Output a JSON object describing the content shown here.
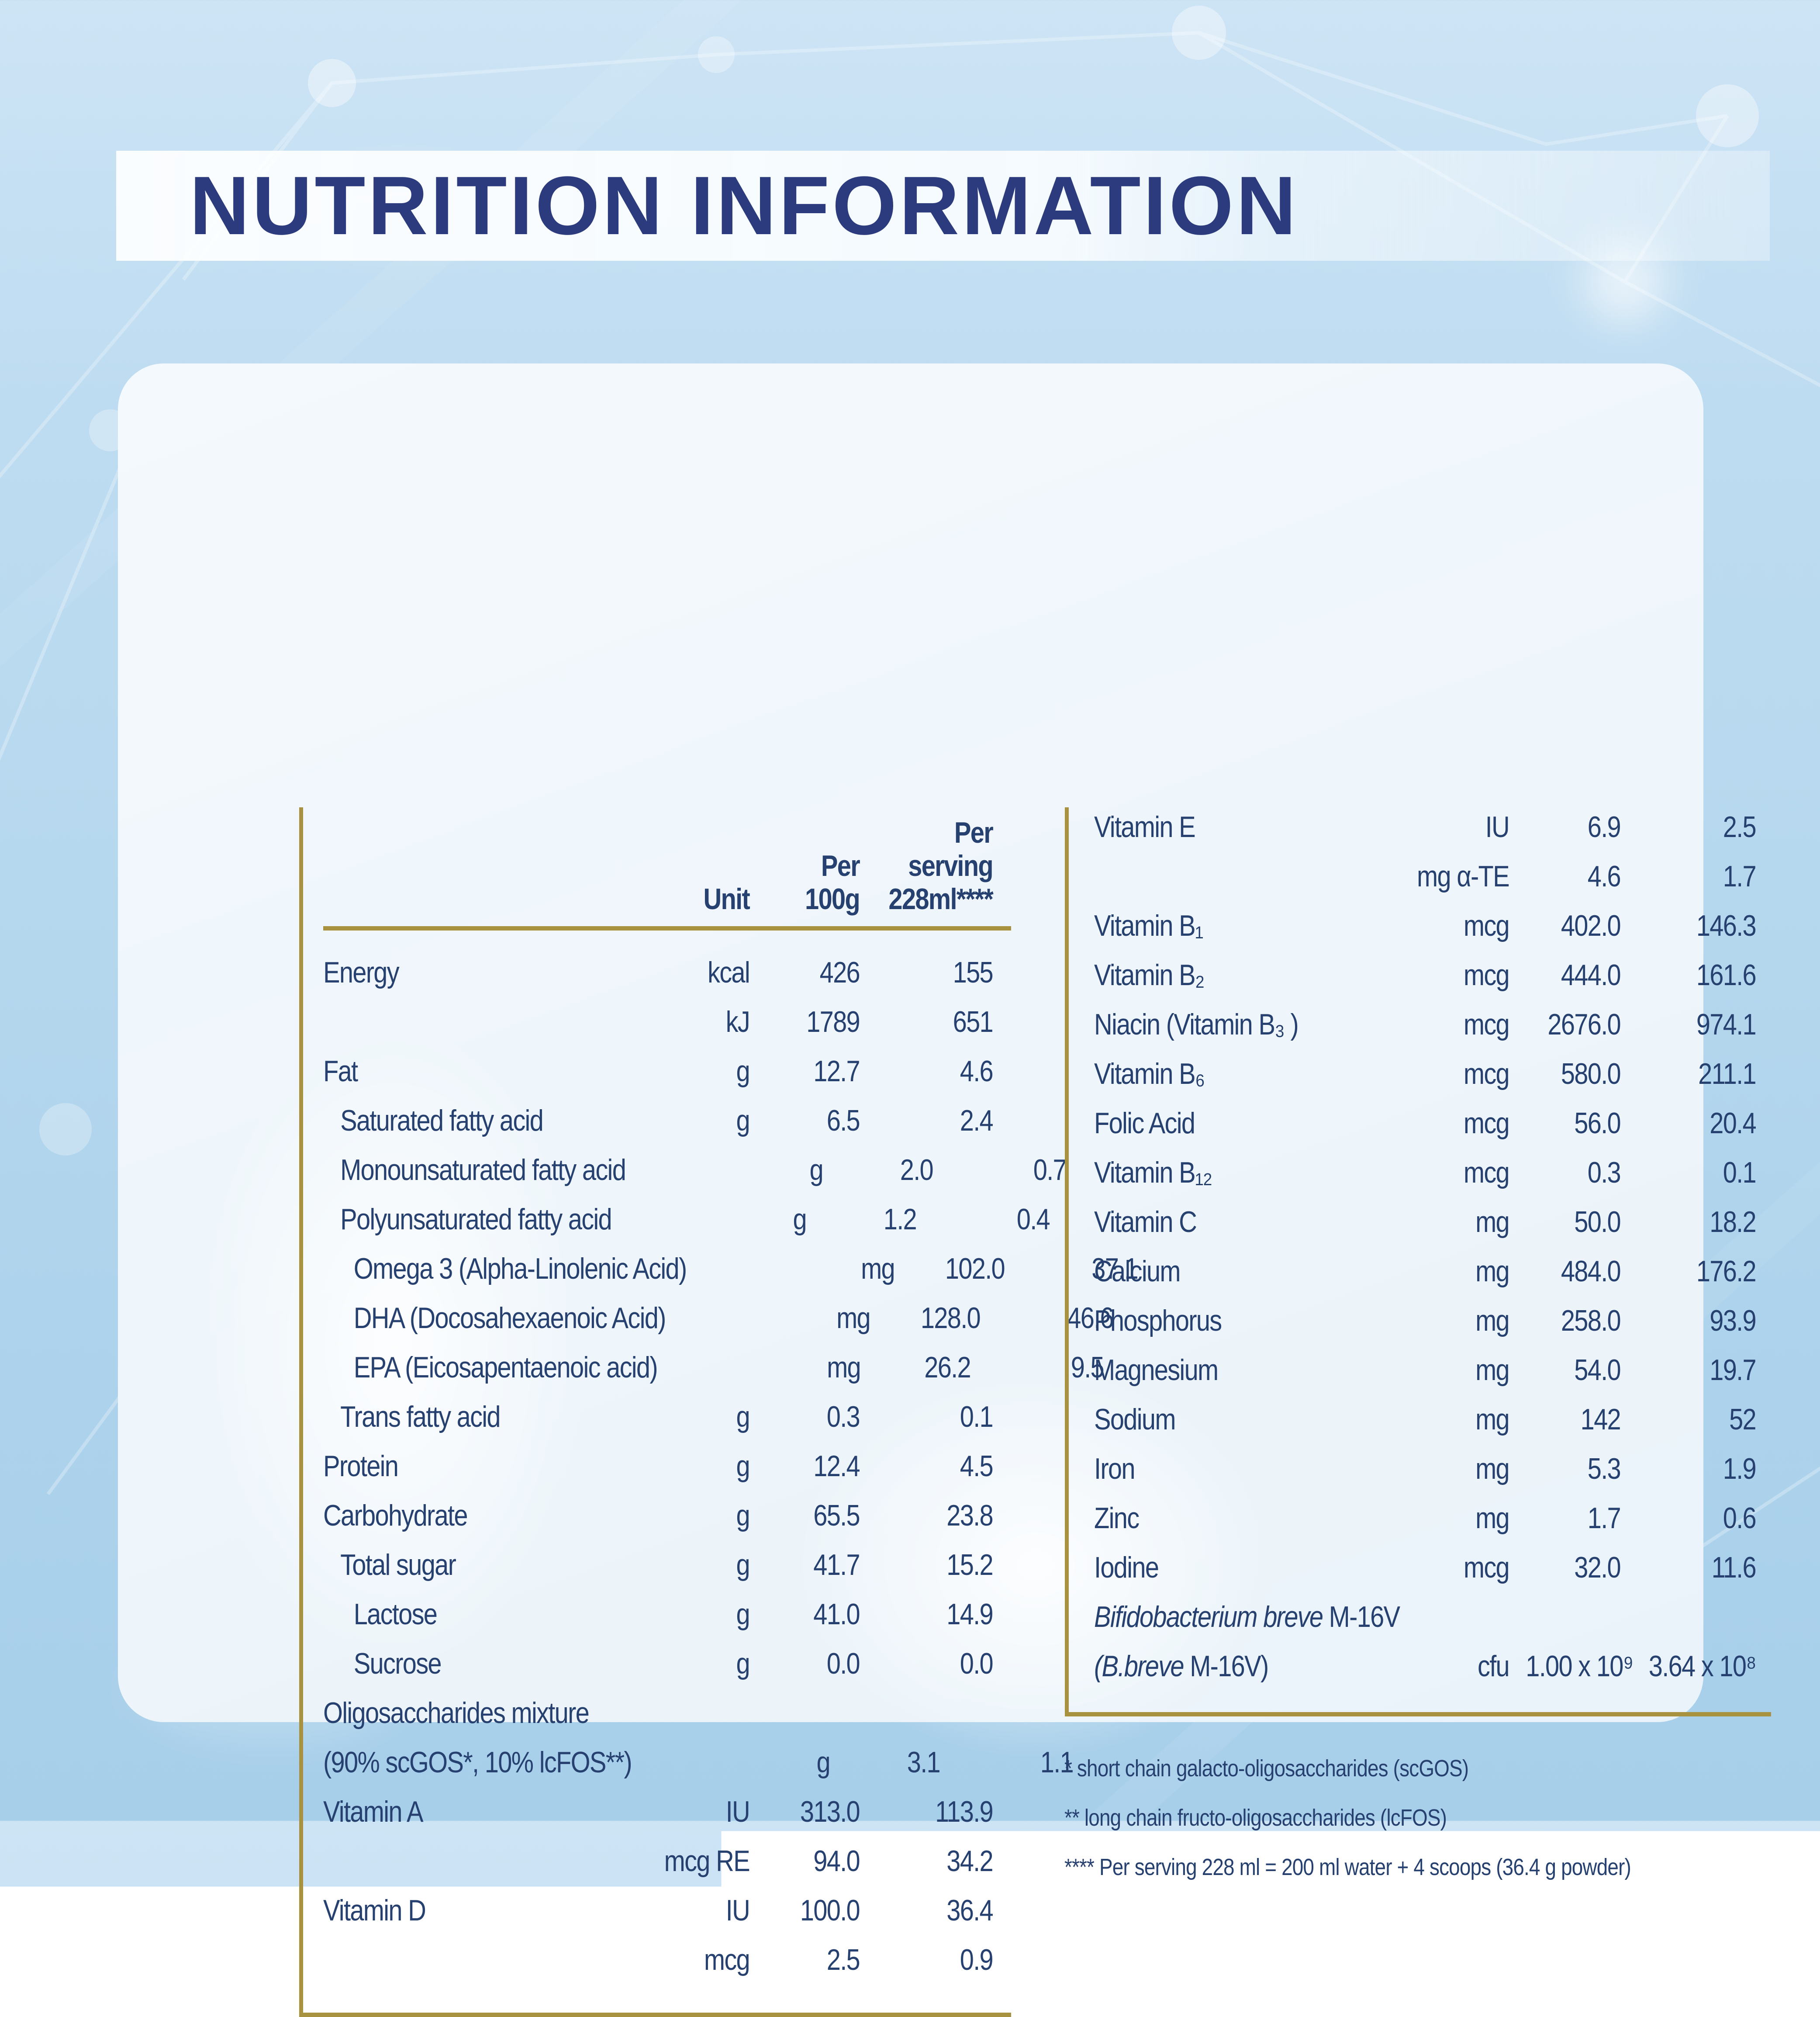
{
  "page": {
    "title": "NUTRITION INFORMATION"
  },
  "colors": {
    "navy_title": "#2c3b7d",
    "navy_text": "#26406f",
    "gold_rule": "#a89240",
    "background_blue": "#b6d8ee",
    "card_white": "#eff6fb"
  },
  "table_left": {
    "headers": {
      "unit": "Unit",
      "per_100g": "Per\n100g",
      "per_serving": "Per\nserving\n228ml****"
    },
    "rows": [
      {
        "label": "Energy",
        "indent": 0,
        "unit": "kcal",
        "per_100g": "426",
        "per_serving": "155"
      },
      {
        "label": "",
        "indent": 0,
        "unit": "kJ",
        "per_100g": "1789",
        "per_serving": "651"
      },
      {
        "label": "Fat",
        "indent": 0,
        "unit": "g",
        "per_100g": "12.7",
        "per_serving": "4.6"
      },
      {
        "label": "Saturated fatty acid",
        "indent": 1,
        "unit": "g",
        "per_100g": "6.5",
        "per_serving": "2.4"
      },
      {
        "label": "Monounsaturated fatty acid",
        "indent": 1,
        "unit": "g",
        "per_100g": "2.0",
        "per_serving": "0.7"
      },
      {
        "label": "Polyunsaturated fatty acid",
        "indent": 1,
        "unit": "g",
        "per_100g": "1.2",
        "per_serving": "0.4"
      },
      {
        "label": "Omega 3 (Alpha-Linolenic Acid)",
        "indent": 2,
        "unit": "mg",
        "per_100g": "102.0",
        "per_serving": "37.1"
      },
      {
        "label": "DHA (Docosahexaenoic Acid)",
        "indent": 2,
        "unit": "mg",
        "per_100g": "128.0",
        "per_serving": "46.6"
      },
      {
        "label": "EPA (Eicosapentaenoic acid)",
        "indent": 2,
        "unit": "mg",
        "per_100g": "26.2",
        "per_serving": "9.5"
      },
      {
        "label": "Trans fatty acid",
        "indent": 1,
        "unit": "g",
        "per_100g": "0.3",
        "per_serving": "0.1"
      },
      {
        "label": "Protein",
        "indent": 0,
        "unit": "g",
        "per_100g": "12.4",
        "per_serving": "4.5"
      },
      {
        "label": "Carbohydrate",
        "indent": 0,
        "unit": "g",
        "per_100g": "65.5",
        "per_serving": "23.8"
      },
      {
        "label": "Total sugar",
        "indent": 1,
        "unit": "g",
        "per_100g": "41.7",
        "per_serving": "15.2"
      },
      {
        "label": "Lactose",
        "indent": 2,
        "unit": "g",
        "per_100g": "41.0",
        "per_serving": "14.9"
      },
      {
        "label": "Sucrose",
        "indent": 2,
        "unit": "g",
        "per_100g": "0.0",
        "per_serving": "0.0"
      },
      {
        "label": "Oligosaccharides mixture",
        "indent": 0,
        "unit": "",
        "per_100g": "",
        "per_serving": ""
      },
      {
        "label": "(90% scGOS*, 10% lcFOS**)",
        "indent": 0,
        "unit": "g",
        "per_100g": "3.1",
        "per_serving": "1.1"
      },
      {
        "label": "Vitamin A",
        "indent": 0,
        "unit": "IU",
        "per_100g": "313.0",
        "per_serving": "113.9"
      },
      {
        "label": "",
        "indent": 0,
        "unit": "mcg RE",
        "per_100g": "94.0",
        "per_serving": "34.2"
      },
      {
        "label": "Vitamin D",
        "indent": 0,
        "unit": "IU",
        "per_100g": "100.0",
        "per_serving": "36.4"
      },
      {
        "label": "",
        "indent": 0,
        "unit": "mcg",
        "per_100g": "2.5",
        "per_serving": "0.9"
      }
    ]
  },
  "table_right": {
    "rows": [
      {
        "label": "Vitamin E",
        "indent": 0,
        "unit": "IU",
        "per_100g": "6.9",
        "per_serving": "2.5"
      },
      {
        "label": "",
        "indent": 0,
        "unit": "mg α-TE",
        "per_100g": "4.6",
        "per_serving": "1.7"
      },
      {
        "label": "Vitamin B₁",
        "indent": 0,
        "unit": "mcg",
        "per_100g": "402.0",
        "per_serving": "146.3"
      },
      {
        "label": "Vitamin B₂",
        "indent": 0,
        "unit": "mcg",
        "per_100g": "444.0",
        "per_serving": "161.6"
      },
      {
        "label": "Niacin (Vitamin B₃ )",
        "indent": 0,
        "unit": "mcg",
        "per_100g": "2676.0",
        "per_serving": "974.1"
      },
      {
        "label": "Vitamin B₆",
        "indent": 0,
        "unit": "mcg",
        "per_100g": "580.0",
        "per_serving": "211.1"
      },
      {
        "label": "Folic Acid",
        "indent": 0,
        "unit": "mcg",
        "per_100g": "56.0",
        "per_serving": "20.4"
      },
      {
        "label": "Vitamin B₁₂",
        "indent": 0,
        "unit": "mcg",
        "per_100g": "0.3",
        "per_serving": "0.1"
      },
      {
        "label": "Vitamin C",
        "indent": 0,
        "unit": "mg",
        "per_100g": "50.0",
        "per_serving": "18.2"
      },
      {
        "label": "Calcium",
        "indent": 0,
        "unit": "mg",
        "per_100g": "484.0",
        "per_serving": "176.2"
      },
      {
        "label": "Phosphorus",
        "indent": 0,
        "unit": "mg",
        "per_100g": "258.0",
        "per_serving": "93.9"
      },
      {
        "label": "Magnesium",
        "indent": 0,
        "unit": "mg",
        "per_100g": "54.0",
        "per_serving": "19.7"
      },
      {
        "label": "Sodium",
        "indent": 0,
        "unit": "mg",
        "per_100g": "142",
        "per_serving": "52"
      },
      {
        "label": "Iron",
        "indent": 0,
        "unit": "mg",
        "per_100g": "5.3",
        "per_serving": "1.9"
      },
      {
        "label": "Zinc",
        "indent": 0,
        "unit": "mg",
        "per_100g": "1.7",
        "per_serving": "0.6"
      },
      {
        "label": "Iodine",
        "indent": 0,
        "unit": "mcg",
        "per_100g": "32.0",
        "per_serving": "11.6"
      },
      {
        "label_italic": "Bifidobacterium breve",
        "label": " M-16V",
        "indent": 0,
        "unit": "",
        "per_100g": "",
        "per_serving": ""
      },
      {
        "label_italic": "(B.breve",
        "label": " M-16V)",
        "indent": 0,
        "unit": "cfu",
        "per_100g": "1.00 x 10⁹",
        "per_serving": "3.64 x 10⁸"
      }
    ]
  },
  "footnotes": [
    "* short chain galacto-oligosaccharides (scGOS)",
    "** long chain fructo-oligosaccharides (lcFOS)",
    "**** Per serving 228 ml = 200 ml water + 4 scoops (36.4 g powder)"
  ]
}
